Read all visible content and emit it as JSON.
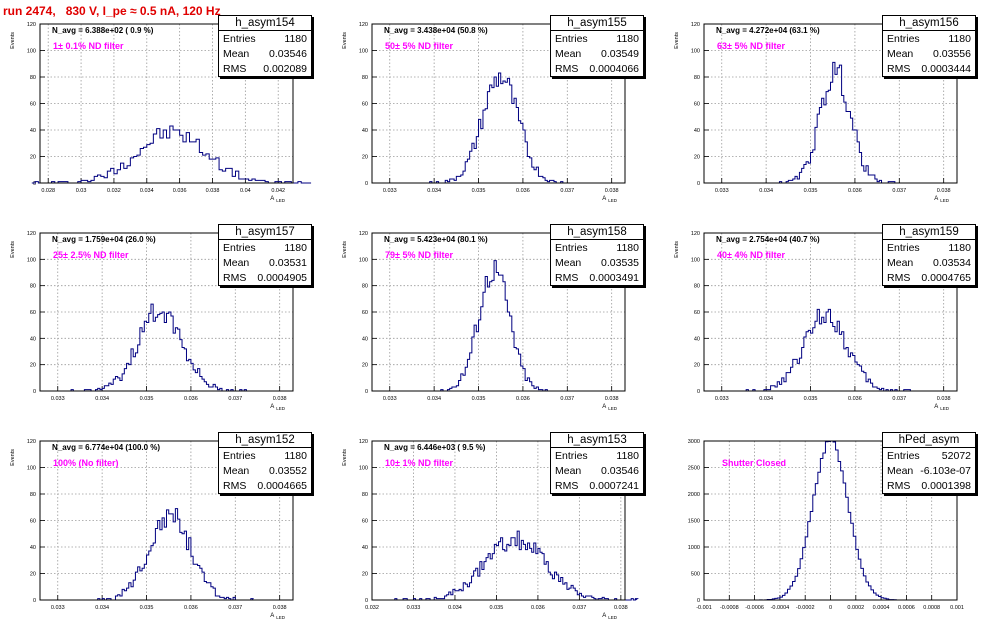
{
  "title": "run 2474,   830 V, I_pe ≈ 0.5 nA, 120 Hz",
  "colors": {
    "title": "#e00000",
    "hist": "#000080",
    "filter_text": "#ff00ff",
    "grid": "#9a9a9a"
  },
  "chart_data": [
    {
      "type": "bar",
      "name": "h_asym154",
      "stats": {
        "entries": "1180",
        "mean": "0.03546",
        "rms": "0.002089"
      },
      "n_avg": "N_avg = 6.388e+02 ( 0.9 %)",
      "note": "1± 0.1% ND filter",
      "ylabel": "Events",
      "xlabel": "A_LED",
      "xlim": [
        0.0275,
        0.0429
      ],
      "ylim": [
        0,
        120
      ],
      "xticks": [
        "0.028",
        "0.03",
        "0.032",
        "0.034",
        "0.036",
        "0.038",
        "0.04",
        "0.042"
      ],
      "yticks": [
        "0",
        "20",
        "40",
        "60",
        "80",
        "100",
        "120"
      ],
      "bin_center": 0.0355,
      "bin_width": 0.0002,
      "sigma": 0.002089,
      "peak": 38,
      "count": 1180
    },
    {
      "type": "bar",
      "name": "h_asym155",
      "stats": {
        "entries": "1180",
        "mean": "0.03549",
        "rms": "0.0004066"
      },
      "n_avg": "N_avg = 3.438e+04 (50.8 %)",
      "note": "50± 5% ND filter",
      "ylabel": "Events",
      "xlabel": "A_LED",
      "xlim": [
        0.0326,
        0.0383
      ],
      "ylim": [
        0,
        120
      ],
      "xticks": [
        "0.033",
        "0.034",
        "0.035",
        "0.036",
        "0.037",
        "0.038"
      ],
      "yticks": [
        "0",
        "20",
        "40",
        "60",
        "80",
        "100",
        "120"
      ],
      "bin_center": 0.03549,
      "bin_width": 5e-05,
      "sigma": 0.0004066,
      "peak": 80,
      "count": 1180
    },
    {
      "type": "bar",
      "name": "h_asym156",
      "stats": {
        "entries": "1180",
        "mean": "0.03556",
        "rms": "0.0003444"
      },
      "n_avg": "N_avg = 4.272e+04 (63.1 %)",
      "note": "63± 5% ND filter",
      "ylabel": "Events",
      "xlabel": "A_LED",
      "xlim": [
        0.0326,
        0.0383
      ],
      "ylim": [
        0,
        120
      ],
      "xticks": [
        "0.033",
        "0.034",
        "0.035",
        "0.036",
        "0.037",
        "0.038"
      ],
      "yticks": [
        "0",
        "20",
        "40",
        "60",
        "80",
        "100",
        "120"
      ],
      "bin_center": 0.03556,
      "bin_width": 5e-05,
      "sigma": 0.0003444,
      "peak": 84,
      "count": 1180
    },
    {
      "type": "bar",
      "name": "h_asym157",
      "stats": {
        "entries": "1180",
        "mean": "0.03531",
        "rms": "0.0004905"
      },
      "n_avg": "N_avg = 1.759e+04 (26.0 %)",
      "note": "25± 2.5% ND filter",
      "ylabel": "Events",
      "xlabel": "A_LED",
      "xlim": [
        0.0326,
        0.0383
      ],
      "ylim": [
        0,
        120
      ],
      "xticks": [
        "0.033",
        "0.034",
        "0.035",
        "0.036",
        "0.037",
        "0.038"
      ],
      "yticks": [
        "0",
        "20",
        "40",
        "60",
        "80",
        "100",
        "120"
      ],
      "bin_center": 0.03531,
      "bin_width": 5e-05,
      "sigma": 0.0004905,
      "peak": 62,
      "count": 1180
    },
    {
      "type": "bar",
      "name": "h_asym158",
      "stats": {
        "entries": "1180",
        "mean": "0.03535",
        "rms": "0.0003491"
      },
      "n_avg": "N_avg = 5.423e+04 (80.1 %)",
      "note": "79± 5% ND filter",
      "ylabel": "Events",
      "xlabel": "A_LED",
      "xlim": [
        0.0326,
        0.0383
      ],
      "ylim": [
        0,
        120
      ],
      "xticks": [
        "0.033",
        "0.034",
        "0.035",
        "0.036",
        "0.037",
        "0.038"
      ],
      "yticks": [
        "0",
        "20",
        "40",
        "60",
        "80",
        "100",
        "120"
      ],
      "bin_center": 0.03535,
      "bin_width": 5e-05,
      "sigma": 0.0003491,
      "peak": 93,
      "count": 1180
    },
    {
      "type": "bar",
      "name": "h_asym159",
      "stats": {
        "entries": "1180",
        "mean": "0.03534",
        "rms": "0.0004765"
      },
      "n_avg": "N_avg = 2.754e+04 (40.7 %)",
      "note": "40± 4% ND filter",
      "ylabel": "Events",
      "xlabel": "A_LED",
      "xlim": [
        0.0326,
        0.0383
      ],
      "ylim": [
        0,
        120
      ],
      "xticks": [
        "0.033",
        "0.034",
        "0.035",
        "0.036",
        "0.037",
        "0.038"
      ],
      "yticks": [
        "0",
        "20",
        "40",
        "60",
        "80",
        "100",
        "120"
      ],
      "bin_center": 0.03534,
      "bin_width": 5e-05,
      "sigma": 0.0004765,
      "peak": 59,
      "count": 1180
    },
    {
      "type": "bar",
      "name": "h_asym152",
      "stats": {
        "entries": "1180",
        "mean": "0.03552",
        "rms": "0.0004665"
      },
      "n_avg": "N_avg = 6.774e+04 (100.0 %)",
      "note": "100% (No filter)",
      "ylabel": "Events",
      "xlabel": "A_LED",
      "xlim": [
        0.0326,
        0.0383
      ],
      "ylim": [
        0,
        120
      ],
      "xticks": [
        "0.033",
        "0.034",
        "0.035",
        "0.036",
        "0.037",
        "0.038"
      ],
      "yticks": [
        "0",
        "20",
        "40",
        "60",
        "80",
        "100",
        "120"
      ],
      "bin_center": 0.03552,
      "bin_width": 5e-05,
      "sigma": 0.0004665,
      "peak": 65,
      "count": 1180
    },
    {
      "type": "bar",
      "name": "h_asym153",
      "stats": {
        "entries": "1180",
        "mean": "0.03546",
        "rms": "0.0007241"
      },
      "n_avg": "N_avg = 6.446e+03 ( 9.5 %)",
      "note": "10± 1% ND filter",
      "ylabel": "Events",
      "xlabel": "A_LED",
      "xlim": [
        0.032,
        0.0381
      ],
      "ylim": [
        0,
        120
      ],
      "xticks": [
        "0.032",
        "0.033",
        "0.034",
        "0.035",
        "0.036",
        "0.037",
        "0.038"
      ],
      "yticks": [
        "0",
        "20",
        "40",
        "60",
        "80",
        "100",
        "120"
      ],
      "bin_center": 0.03546,
      "bin_width": 5e-05,
      "sigma": 0.0007241,
      "peak": 46,
      "count": 1180
    },
    {
      "type": "bar",
      "name": "hPed_asym",
      "stats": {
        "entries": "52072",
        "mean": "-6.103e-07",
        "rms": "0.0001398"
      },
      "n_avg": "",
      "note": "Shutter Closed",
      "ylabel": "",
      "xlabel": "",
      "xlim": [
        -0.001,
        0.001
      ],
      "ylim": [
        0,
        3000
      ],
      "xticks": [
        "-0.001",
        "-0.0008",
        "-0.0006",
        "-0.0004",
        "-0.0002",
        "0",
        "0.0002",
        "0.0004",
        "0.0006",
        "0.0008",
        "0.001"
      ],
      "yticks": [
        "0",
        "500",
        "1000",
        "1500",
        "2000",
        "2500",
        "3000"
      ],
      "bin_center": -6.103e-07,
      "bin_width": 2e-05,
      "sigma": 0.0001398,
      "peak": 3000,
      "count": 52072
    }
  ]
}
